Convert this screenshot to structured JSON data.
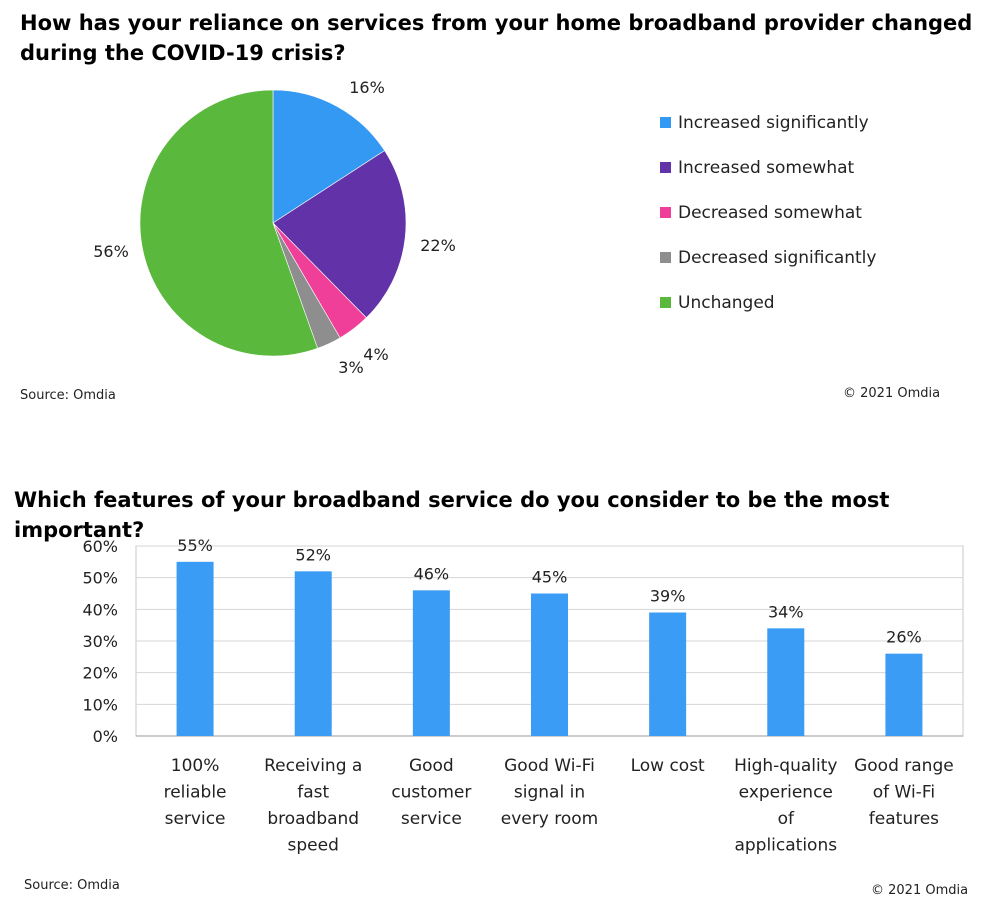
{
  "pie_section": {
    "title": "How has your reliance on services from your home broadband  provider changed during the COVID-19 crisis?",
    "source": "Source: Omdia",
    "copyright": "© 2021 Omdia"
  },
  "bar_section": {
    "title": "Which features of your broadband service do you consider to be the most important?",
    "source": "Source: Omdia",
    "copyright": "© 2021 Omdia"
  },
  "colors": {
    "increased_significantly": "#3399f3",
    "increased_somewhat": "#6232a8",
    "decreased_somewhat": "#ef3f98",
    "decreased_significantly": "#8e8e8e",
    "unchanged": "#5ab83c",
    "bar": "#3a9cf4"
  },
  "chart_data": [
    {
      "type": "pie",
      "title": "How has your reliance on services from your home broadband  provider changed during the COVID-19 crisis?",
      "legend_position": "right",
      "slices": [
        {
          "label": "Increased significantly",
          "value": 16,
          "display": "16%",
          "color": "#3399f3"
        },
        {
          "label": "Increased somewhat",
          "value": 22,
          "display": "22%",
          "color": "#6232a8"
        },
        {
          "label": "Decreased somewhat",
          "value": 4,
          "display": "4%",
          "color": "#ef3f98"
        },
        {
          "label": "Decreased significantly",
          "value": 3,
          "display": "3%",
          "color": "#8e8e8e"
        },
        {
          "label": "Unchanged",
          "value": 56,
          "display": "56%",
          "color": "#5ab83c"
        }
      ]
    },
    {
      "type": "bar",
      "title": "Which features of your broadband service do you consider to be the most important?",
      "categories": [
        [
          "100%",
          "reliable",
          "service"
        ],
        [
          "Receiving a",
          "fast",
          "broadband",
          "speed"
        ],
        [
          "Good",
          "customer",
          "service"
        ],
        [
          "Good Wi-Fi",
          "signal in",
          "every room"
        ],
        [
          "Low cost"
        ],
        [
          "High-quality",
          "experience",
          "of",
          "applications"
        ],
        [
          "Good range",
          "of Wi-Fi",
          "features"
        ]
      ],
      "values": [
        55,
        52,
        46,
        45,
        39,
        34,
        26
      ],
      "value_labels": [
        "55%",
        "52%",
        "46%",
        "45%",
        "39%",
        "34%",
        "26%"
      ],
      "yticks": [
        "0%",
        "10%",
        "20%",
        "30%",
        "40%",
        "50%",
        "60%"
      ],
      "ylim": [
        0,
        60
      ],
      "grid": true,
      "xlabel": "",
      "ylabel": ""
    }
  ]
}
